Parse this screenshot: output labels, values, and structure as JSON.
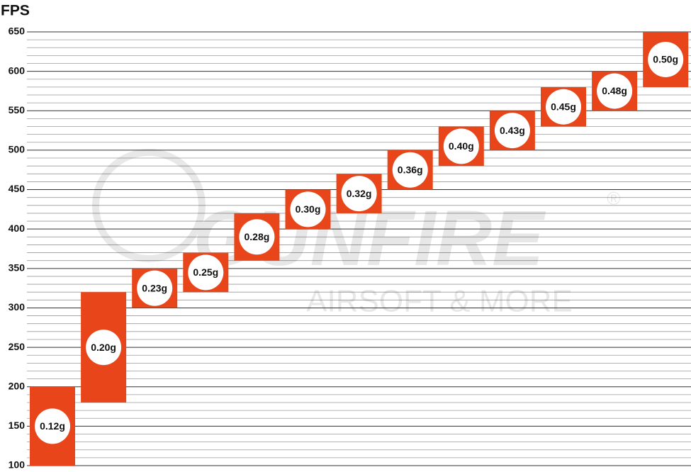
{
  "chart_data": {
    "type": "range-bar",
    "title": "FPS",
    "categories": [
      "0.12g",
      "0.20g",
      "0.23g",
      "0.25g",
      "0.28g",
      "0.30g",
      "0.32g",
      "0.36g",
      "0.40g",
      "0.43g",
      "0.45g",
      "0.48g",
      "0.50g"
    ],
    "low": [
      100,
      180,
      300,
      320,
      360,
      400,
      420,
      450,
      480,
      500,
      530,
      550,
      580
    ],
    "high": [
      200,
      320,
      350,
      370,
      420,
      450,
      470,
      500,
      530,
      550,
      580,
      600,
      650
    ],
    "color": "#e8461a",
    "ylim": [
      100,
      650
    ],
    "yticks": [
      100,
      150,
      200,
      250,
      300,
      350,
      400,
      450,
      500,
      550,
      600,
      650
    ],
    "minor_yticks": [
      110,
      120,
      130,
      140,
      160,
      170,
      180,
      190,
      210,
      220,
      230,
      240,
      260,
      270,
      280,
      290,
      310,
      320,
      330,
      340,
      360,
      370,
      380,
      390,
      410,
      420,
      430,
      440,
      460,
      470,
      480,
      490,
      510,
      520,
      530,
      540,
      560,
      570,
      580,
      590,
      610,
      620,
      630,
      640
    ],
    "grid": true,
    "watermark": {
      "brand": "GUNFIRE",
      "tagline": "AIRSOFT & MORE",
      "registered": "®"
    }
  }
}
